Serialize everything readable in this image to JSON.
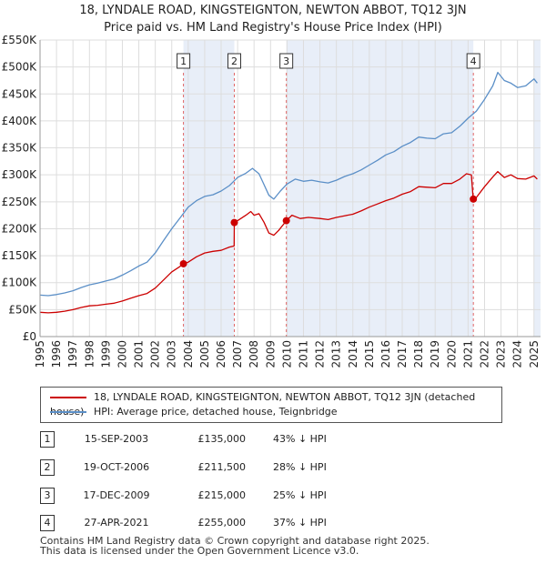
{
  "title": {
    "line1": "18, LYNDALE ROAD, KINGSTEIGNTON, NEWTON ABBOT, TQ12 3JN",
    "line2": "Price paid vs. HM Land Registry's House Price Index (HPI)"
  },
  "colors": {
    "property": "#cc0000",
    "hpi": "#5b8fc7",
    "band": "#e8eef8",
    "vline": "#e06666",
    "grid": "#dddddd"
  },
  "chart_data": {
    "type": "line",
    "title": "Price paid vs. HM Land Registry's House Price Index (HPI)",
    "xlabel": "",
    "ylabel": "",
    "xlim": [
      1995,
      2025.4
    ],
    "ylim": [
      0,
      550000
    ],
    "y_ticks": [
      0,
      50000,
      100000,
      150000,
      200000,
      250000,
      300000,
      350000,
      400000,
      450000,
      500000,
      550000
    ],
    "y_tick_labels": [
      "£0",
      "£50K",
      "£100K",
      "£150K",
      "£200K",
      "£250K",
      "£300K",
      "£350K",
      "£400K",
      "£450K",
      "£500K",
      "£550K"
    ],
    "x_ticks": [
      1995,
      1996,
      1997,
      1998,
      1999,
      2000,
      2001,
      2002,
      2003,
      2004,
      2005,
      2006,
      2007,
      2008,
      2009,
      2010,
      2011,
      2012,
      2013,
      2014,
      2015,
      2016,
      2017,
      2018,
      2019,
      2020,
      2021,
      2022,
      2023,
      2024,
      2025
    ],
    "x_tick_labels": [
      "1995",
      "1996",
      "1997",
      "1998",
      "1999",
      "2000",
      "2001",
      "2002",
      "2003",
      "2004",
      "2005",
      "2006",
      "2007",
      "2008",
      "2009",
      "2010",
      "2011",
      "2012",
      "2013",
      "2014",
      "2015",
      "2016",
      "2017",
      "2018",
      "2019",
      "2020",
      "2021",
      "2022",
      "2023",
      "2024",
      "2025"
    ],
    "grid": true,
    "series": [
      {
        "name": "18, LYNDALE ROAD, KINGSTEIGNTON, NEWTON ABBOT, TQ12 3JN (detached house)",
        "color": "#cc0000",
        "points": [
          [
            1995.0,
            45000
          ],
          [
            1995.5,
            44000
          ],
          [
            1996.0,
            45000
          ],
          [
            1996.5,
            47000
          ],
          [
            1997.0,
            50000
          ],
          [
            1997.5,
            54000
          ],
          [
            1998.0,
            57000
          ],
          [
            1998.5,
            58000
          ],
          [
            1999.0,
            60000
          ],
          [
            1999.5,
            62000
          ],
          [
            2000.0,
            66000
          ],
          [
            2000.5,
            71000
          ],
          [
            2001.0,
            76000
          ],
          [
            2001.5,
            80000
          ],
          [
            2002.0,
            90000
          ],
          [
            2002.5,
            105000
          ],
          [
            2003.0,
            120000
          ],
          [
            2003.5,
            130000
          ],
          [
            2003.71,
            135000
          ],
          [
            2004.0,
            138000
          ],
          [
            2004.5,
            148000
          ],
          [
            2005.0,
            155000
          ],
          [
            2005.5,
            158000
          ],
          [
            2006.0,
            160000
          ],
          [
            2006.5,
            166000
          ],
          [
            2006.79,
            168000
          ],
          [
            2006.8,
            211500
          ],
          [
            2007.0,
            215000
          ],
          [
            2007.5,
            225000
          ],
          [
            2007.8,
            232000
          ],
          [
            2008.0,
            225000
          ],
          [
            2008.3,
            228000
          ],
          [
            2008.6,
            212000
          ],
          [
            2008.9,
            192000
          ],
          [
            2009.2,
            188000
          ],
          [
            2009.5,
            197000
          ],
          [
            2009.96,
            215000
          ],
          [
            2010.3,
            225000
          ],
          [
            2010.8,
            219000
          ],
          [
            2011.3,
            221000
          ],
          [
            2012.0,
            219000
          ],
          [
            2012.5,
            217000
          ],
          [
            2013.0,
            221000
          ],
          [
            2013.5,
            224000
          ],
          [
            2014.0,
            227000
          ],
          [
            2014.5,
            233000
          ],
          [
            2015.0,
            240000
          ],
          [
            2015.5,
            246000
          ],
          [
            2016.0,
            252000
          ],
          [
            2016.5,
            257000
          ],
          [
            2017.0,
            264000
          ],
          [
            2017.5,
            269000
          ],
          [
            2018.0,
            278000
          ],
          [
            2018.5,
            277000
          ],
          [
            2019.0,
            276000
          ],
          [
            2019.5,
            284000
          ],
          [
            2020.0,
            284000
          ],
          [
            2020.5,
            292000
          ],
          [
            2020.9,
            302000
          ],
          [
            2021.2,
            300000
          ],
          [
            2021.31,
            255000
          ],
          [
            2021.5,
            258000
          ],
          [
            2022.0,
            278000
          ],
          [
            2022.5,
            296000
          ],
          [
            2022.8,
            306000
          ],
          [
            2023.2,
            295000
          ],
          [
            2023.6,
            300000
          ],
          [
            2024.0,
            293000
          ],
          [
            2024.5,
            292000
          ],
          [
            2025.0,
            298000
          ],
          [
            2025.2,
            292000
          ]
        ]
      },
      {
        "name": "HPI: Average price, detached house, Teignbridge",
        "color": "#5b8fc7",
        "points": [
          [
            1995.0,
            77000
          ],
          [
            1995.5,
            76000
          ],
          [
            1996.0,
            78000
          ],
          [
            1996.5,
            81000
          ],
          [
            1997.0,
            85000
          ],
          [
            1997.5,
            91000
          ],
          [
            1998.0,
            96000
          ],
          [
            1998.5,
            99000
          ],
          [
            1999.0,
            103000
          ],
          [
            1999.5,
            107000
          ],
          [
            2000.0,
            114000
          ],
          [
            2000.5,
            122000
          ],
          [
            2001.0,
            131000
          ],
          [
            2001.5,
            138000
          ],
          [
            2002.0,
            155000
          ],
          [
            2002.5,
            178000
          ],
          [
            2003.0,
            200000
          ],
          [
            2003.5,
            220000
          ],
          [
            2004.0,
            240000
          ],
          [
            2004.5,
            252000
          ],
          [
            2005.0,
            260000
          ],
          [
            2005.5,
            263000
          ],
          [
            2006.0,
            270000
          ],
          [
            2006.5,
            280000
          ],
          [
            2007.0,
            295000
          ],
          [
            2007.5,
            303000
          ],
          [
            2007.9,
            312000
          ],
          [
            2008.3,
            302000
          ],
          [
            2008.6,
            282000
          ],
          [
            2008.9,
            262000
          ],
          [
            2009.2,
            255000
          ],
          [
            2009.6,
            270000
          ],
          [
            2010.0,
            283000
          ],
          [
            2010.5,
            292000
          ],
          [
            2011.0,
            288000
          ],
          [
            2011.5,
            290000
          ],
          [
            2012.0,
            287000
          ],
          [
            2012.5,
            285000
          ],
          [
            2013.0,
            290000
          ],
          [
            2013.5,
            297000
          ],
          [
            2014.0,
            302000
          ],
          [
            2014.5,
            309000
          ],
          [
            2015.0,
            318000
          ],
          [
            2015.5,
            327000
          ],
          [
            2016.0,
            337000
          ],
          [
            2016.5,
            343000
          ],
          [
            2017.0,
            353000
          ],
          [
            2017.5,
            360000
          ],
          [
            2018.0,
            370000
          ],
          [
            2018.5,
            368000
          ],
          [
            2019.0,
            367000
          ],
          [
            2019.5,
            376000
          ],
          [
            2020.0,
            378000
          ],
          [
            2020.5,
            390000
          ],
          [
            2021.0,
            405000
          ],
          [
            2021.5,
            418000
          ],
          [
            2022.0,
            440000
          ],
          [
            2022.5,
            465000
          ],
          [
            2022.8,
            490000
          ],
          [
            2023.2,
            475000
          ],
          [
            2023.6,
            470000
          ],
          [
            2024.0,
            462000
          ],
          [
            2024.5,
            465000
          ],
          [
            2025.0,
            478000
          ],
          [
            2025.2,
            470000
          ]
        ]
      }
    ],
    "sales": [
      {
        "label": "1",
        "x": 2003.71,
        "y": 135000
      },
      {
        "label": "2",
        "x": 2006.8,
        "y": 211500
      },
      {
        "label": "3",
        "x": 2009.96,
        "y": 215000
      },
      {
        "label": "4",
        "x": 2021.32,
        "y": 255000
      }
    ],
    "shaded_periods": [
      [
        2003.71,
        2006.8
      ],
      [
        2009.96,
        2021.32
      ],
      [
        2025.0,
        2025.4
      ]
    ]
  },
  "legend": {
    "property": "18, LYNDALE ROAD, KINGSTEIGNTON, NEWTON ABBOT, TQ12 3JN (detached house)",
    "hpi": "HPI: Average price, detached house, Teignbridge"
  },
  "sales_table": [
    {
      "num": "1",
      "date": "15-SEP-2003",
      "price": "£135,000",
      "hpi": "43% ↓ HPI"
    },
    {
      "num": "2",
      "date": "19-OCT-2006",
      "price": "£211,500",
      "hpi": "28% ↓ HPI"
    },
    {
      "num": "3",
      "date": "17-DEC-2009",
      "price": "£215,000",
      "hpi": "25% ↓ HPI"
    },
    {
      "num": "4",
      "date": "27-APR-2021",
      "price": "£255,000",
      "hpi": "37% ↓ HPI"
    }
  ],
  "footer": {
    "line1": "Contains HM Land Registry data © Crown copyright and database right 2025.",
    "line2": "This data is licensed under the Open Government Licence v3.0."
  }
}
